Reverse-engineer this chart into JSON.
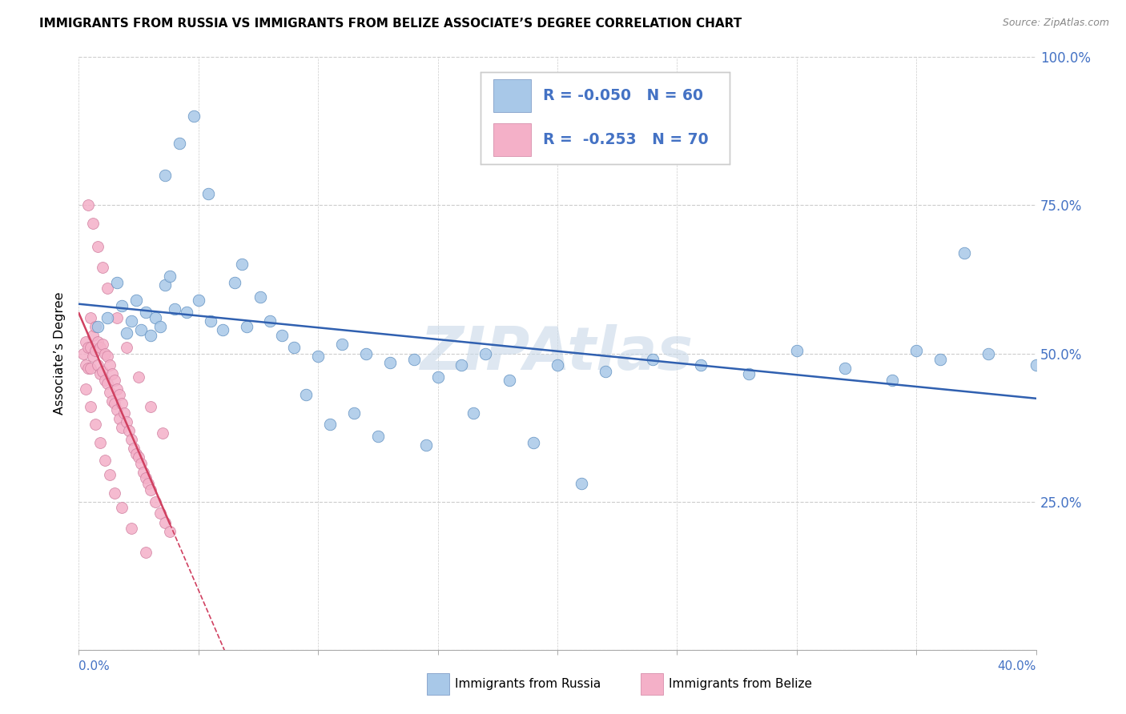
{
  "title": "IMMIGRANTS FROM RUSSIA VS IMMIGRANTS FROM BELIZE ASSOCIATE’S DEGREE CORRELATION CHART",
  "source": "Source: ZipAtlas.com",
  "ylabel": "Associate’s Degree",
  "x_range": [
    0.0,
    0.4
  ],
  "y_range": [
    0.0,
    1.0
  ],
  "legend_R1": "R = -0.050",
  "legend_N1": "N = 60",
  "legend_R2": "R =  -0.253",
  "legend_N2": "N = 70",
  "color_russia": "#a8c8e8",
  "color_belize": "#f4b0c8",
  "color_line_russia": "#3060b0",
  "color_line_belize": "#d04060",
  "watermark": "ZIPAtlas",
  "russia_x": [
    0.008,
    0.012,
    0.016,
    0.018,
    0.02,
    0.022,
    0.024,
    0.026,
    0.028,
    0.03,
    0.032,
    0.034,
    0.036,
    0.038,
    0.04,
    0.045,
    0.05,
    0.055,
    0.06,
    0.065,
    0.07,
    0.08,
    0.09,
    0.1,
    0.11,
    0.12,
    0.13,
    0.14,
    0.15,
    0.16,
    0.17,
    0.18,
    0.2,
    0.22,
    0.24,
    0.26,
    0.28,
    0.3,
    0.32,
    0.34,
    0.36,
    0.38,
    0.4,
    0.036,
    0.042,
    0.048,
    0.054,
    0.068,
    0.076,
    0.085,
    0.095,
    0.105,
    0.115,
    0.125,
    0.145,
    0.165,
    0.19,
    0.21,
    0.35,
    0.37
  ],
  "russia_y": [
    0.545,
    0.56,
    0.62,
    0.58,
    0.535,
    0.555,
    0.59,
    0.54,
    0.57,
    0.53,
    0.56,
    0.545,
    0.615,
    0.63,
    0.575,
    0.57,
    0.59,
    0.555,
    0.54,
    0.62,
    0.545,
    0.555,
    0.51,
    0.495,
    0.515,
    0.5,
    0.485,
    0.49,
    0.46,
    0.48,
    0.5,
    0.455,
    0.48,
    0.47,
    0.49,
    0.48,
    0.465,
    0.505,
    0.475,
    0.455,
    0.49,
    0.5,
    0.48,
    0.8,
    0.855,
    0.9,
    0.77,
    0.65,
    0.595,
    0.53,
    0.43,
    0.38,
    0.4,
    0.36,
    0.345,
    0.4,
    0.35,
    0.28,
    0.505,
    0.67
  ],
  "belize_x": [
    0.002,
    0.003,
    0.003,
    0.004,
    0.004,
    0.005,
    0.005,
    0.005,
    0.006,
    0.006,
    0.007,
    0.007,
    0.008,
    0.008,
    0.009,
    0.009,
    0.01,
    0.01,
    0.011,
    0.011,
    0.012,
    0.012,
    0.013,
    0.013,
    0.014,
    0.014,
    0.015,
    0.015,
    0.016,
    0.016,
    0.017,
    0.017,
    0.018,
    0.018,
    0.019,
    0.02,
    0.021,
    0.022,
    0.023,
    0.024,
    0.025,
    0.026,
    0.027,
    0.028,
    0.029,
    0.03,
    0.032,
    0.034,
    0.036,
    0.038,
    0.004,
    0.006,
    0.008,
    0.01,
    0.012,
    0.016,
    0.02,
    0.025,
    0.03,
    0.035,
    0.003,
    0.005,
    0.007,
    0.009,
    0.011,
    0.013,
    0.015,
    0.018,
    0.022,
    0.028
  ],
  "belize_y": [
    0.5,
    0.52,
    0.48,
    0.51,
    0.475,
    0.56,
    0.51,
    0.475,
    0.53,
    0.495,
    0.545,
    0.505,
    0.52,
    0.48,
    0.51,
    0.465,
    0.515,
    0.47,
    0.5,
    0.455,
    0.495,
    0.45,
    0.48,
    0.435,
    0.465,
    0.42,
    0.455,
    0.415,
    0.44,
    0.405,
    0.43,
    0.39,
    0.415,
    0.375,
    0.4,
    0.385,
    0.37,
    0.355,
    0.34,
    0.33,
    0.325,
    0.315,
    0.3,
    0.29,
    0.28,
    0.27,
    0.25,
    0.23,
    0.215,
    0.2,
    0.75,
    0.72,
    0.68,
    0.645,
    0.61,
    0.56,
    0.51,
    0.46,
    0.41,
    0.365,
    0.44,
    0.41,
    0.38,
    0.35,
    0.32,
    0.295,
    0.265,
    0.24,
    0.205,
    0.165
  ]
}
